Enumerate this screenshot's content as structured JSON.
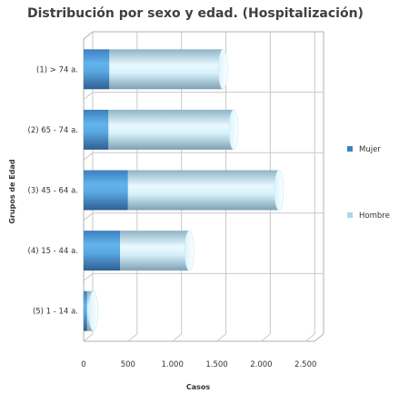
{
  "chart_data": {
    "type": "bar",
    "orientation": "horizontal",
    "stacked": true,
    "title": "Distribución por sexo y edad. (Hospitalización)",
    "xlabel": "Casos",
    "ylabel": "Grupos de Edad",
    "categories": [
      "(1) > 74 a.",
      "(2) 65 - 74 a.",
      "(3) 45 - 64 a.",
      "(4) 15 - 44 a.",
      "(5) 1 - 14 a."
    ],
    "series": [
      {
        "name": "Mujer",
        "color": "#3a82c4",
        "values": [
          290,
          280,
          500,
          410,
          40
        ]
      },
      {
        "name": "Hombre",
        "color": "#a6d8ef",
        "values": [
          1280,
          1410,
          1700,
          780,
          70
        ]
      }
    ],
    "xticks": [
      "0",
      "500",
      "1.000",
      "1.500",
      "2.000",
      "2.500"
    ],
    "xtick_values": [
      0,
      500,
      1000,
      1500,
      2000,
      2500
    ],
    "xlim": [
      0,
      2600
    ],
    "legend_position": "right",
    "grid": true
  }
}
